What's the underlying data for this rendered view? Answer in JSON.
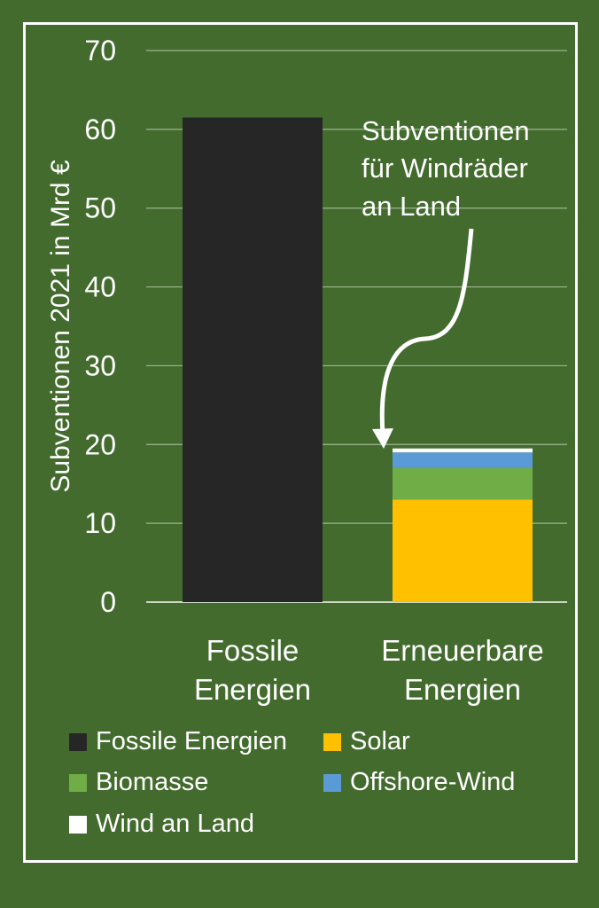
{
  "chart_data": {
    "type": "bar",
    "stacked": true,
    "categories": [
      "Fossile Energien",
      "Erneuerbare Energien"
    ],
    "category_lines": [
      [
        "Fossile",
        "Energien"
      ],
      [
        "Erneuerbare",
        "Energien"
      ]
    ],
    "series": [
      {
        "name": "Fossile Energien",
        "color": "#262626",
        "values": [
          61.5,
          0
        ]
      },
      {
        "name": "Solar",
        "color": "#ffc000",
        "values": [
          0,
          13.0
        ]
      },
      {
        "name": "Biomasse",
        "color": "#70ad47",
        "values": [
          0,
          4.0
        ]
      },
      {
        "name": "Offshore-Wind",
        "color": "#5b9bd5",
        "values": [
          0,
          2.0
        ]
      },
      {
        "name": "Wind an Land",
        "color": "#ffffff",
        "values": [
          0,
          0.5
        ]
      }
    ],
    "ylabel": "Subventionen 2021 in Mrd €",
    "ylim": [
      0,
      70
    ],
    "yticks": [
      0,
      10,
      20,
      30,
      40,
      50,
      60,
      70
    ],
    "grid": true,
    "legend_position": "bottom",
    "annotation": {
      "lines": [
        "Subventionen",
        "für Windräder",
        "an Land"
      ],
      "target_series": "Wind an Land"
    }
  }
}
